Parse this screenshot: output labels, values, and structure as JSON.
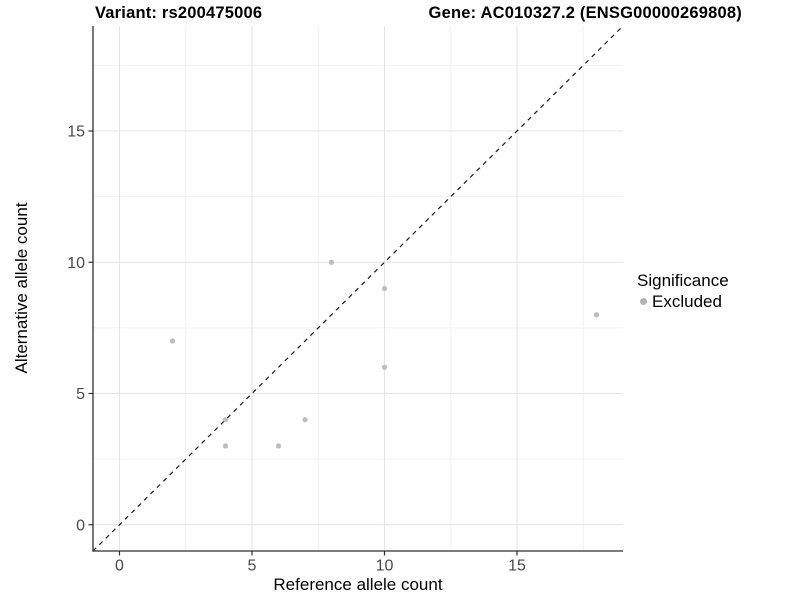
{
  "chart_data": {
    "type": "scatter",
    "title_variant": "Variant: rs200475006",
    "title_gene": "Gene: AC010327.2 (ENSG00000269808)",
    "xlabel": "Reference allele count",
    "ylabel": "Alternative allele count",
    "xlim": [
      -1,
      19
    ],
    "ylim": [
      -1,
      19
    ],
    "x_ticks": [
      0,
      5,
      10,
      15
    ],
    "y_ticks": [
      0,
      5,
      10,
      15
    ],
    "x_minor_gridlines": [
      2.5,
      7.5,
      12.5,
      17.5
    ],
    "y_minor_gridlines": [
      2.5,
      7.5,
      12.5,
      17.5
    ],
    "grid": "major+minor",
    "identity_line": {
      "style": "dashed",
      "from": [
        -1,
        -1
      ],
      "to": [
        19,
        19
      ]
    },
    "series": [
      {
        "name": "Excluded",
        "color": "#bdbdbd",
        "points": [
          [
            2,
            7
          ],
          [
            4,
            3
          ],
          [
            4,
            4
          ],
          [
            6,
            3
          ],
          [
            7,
            4
          ],
          [
            8,
            10
          ],
          [
            10,
            6
          ],
          [
            10,
            9
          ],
          [
            18,
            8
          ]
        ]
      }
    ],
    "legend": {
      "title": "Significance",
      "position": "right",
      "items": [
        {
          "label": "Excluded",
          "color": "#b3b3b3",
          "marker": "circle"
        }
      ]
    },
    "colors": {
      "background": "#ffffff",
      "point": "#bdbdbd",
      "grid_major": "#e4e4e4",
      "grid_minor": "#f1f1f1",
      "axis_line": "#2f2f2f",
      "tick_mark": "#2f2f2f",
      "tick_label": "#4a4a4a",
      "identity_line": "#1a1a1a",
      "text": "#000000"
    }
  }
}
